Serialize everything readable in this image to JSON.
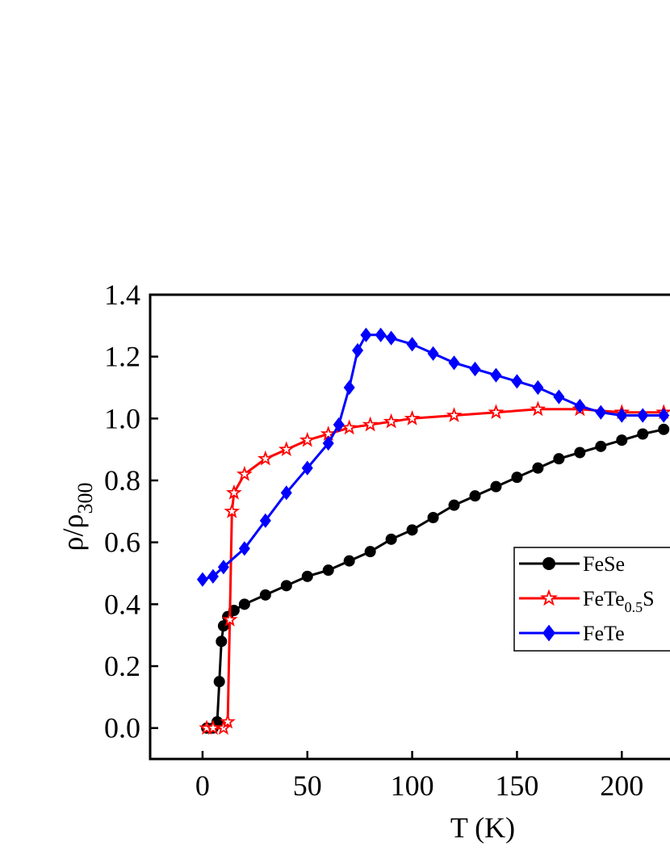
{
  "chart_data": {
    "type": "line",
    "x_label": "T (K)",
    "y_label": [
      "ρ/ρ",
      "300"
    ],
    "xlim": [
      -25,
      223
    ],
    "ylim": [
      -0.1,
      1.4
    ],
    "xticks": [
      0,
      50,
      100,
      150,
      200
    ],
    "yticks": [
      {
        "value": 0,
        "label": "0.0"
      },
      {
        "value": 0.2,
        "label": "0.2"
      },
      {
        "value": 0.4,
        "label": "0.4"
      },
      {
        "value": 0.6,
        "label": "0.6"
      },
      {
        "value": 0.8,
        "label": "0.8"
      },
      {
        "value": 1.0,
        "label": "1.0"
      },
      {
        "value": 1.2,
        "label": "1.2"
      },
      {
        "value": 1.4,
        "label": "1.4"
      }
    ],
    "series": [
      {
        "name": [
          "FeSe"
        ],
        "color": "#000000",
        "marker": "circle",
        "x": [
          2,
          5,
          7,
          8,
          9,
          10,
          12,
          15,
          20,
          30,
          40,
          50,
          60,
          70,
          80,
          90,
          100,
          110,
          120,
          130,
          140,
          150,
          160,
          170,
          180,
          190,
          200,
          210,
          220
        ],
        "values": [
          0,
          0,
          0.02,
          0.15,
          0.28,
          0.33,
          0.36,
          0.38,
          0.4,
          0.43,
          0.46,
          0.49,
          0.51,
          0.54,
          0.57,
          0.61,
          0.64,
          0.68,
          0.72,
          0.75,
          0.78,
          0.81,
          0.84,
          0.87,
          0.89,
          0.91,
          0.93,
          0.95,
          0.965
        ]
      },
      {
        "name": [
          "FeTe",
          "0.5",
          "S"
        ],
        "color": "#ff0000",
        "marker": "star",
        "x": [
          2,
          5,
          10,
          12,
          13,
          14,
          15,
          20,
          30,
          40,
          50,
          60,
          70,
          80,
          90,
          100,
          120,
          140,
          160,
          180,
          200,
          220
        ],
        "values": [
          0,
          0,
          0,
          0.02,
          0.35,
          0.7,
          0.76,
          0.82,
          0.87,
          0.9,
          0.93,
          0.95,
          0.97,
          0.98,
          0.99,
          1.0,
          1.01,
          1.02,
          1.03,
          1.03,
          1.02,
          1.02
        ]
      },
      {
        "name": [
          "FeTe"
        ],
        "color": "#0000ff",
        "marker": "diamond",
        "x": [
          0,
          5,
          10,
          20,
          30,
          40,
          50,
          60,
          65,
          70,
          74,
          78,
          85,
          90,
          100,
          110,
          120,
          130,
          140,
          150,
          160,
          170,
          180,
          190,
          200,
          210,
          220
        ],
        "values": [
          0.48,
          0.49,
          0.52,
          0.58,
          0.67,
          0.76,
          0.84,
          0.92,
          0.98,
          1.1,
          1.22,
          1.27,
          1.27,
          1.26,
          1.24,
          1.21,
          1.18,
          1.16,
          1.14,
          1.12,
          1.1,
          1.07,
          1.04,
          1.02,
          1.01,
          1.01,
          1.01
        ]
      }
    ]
  }
}
